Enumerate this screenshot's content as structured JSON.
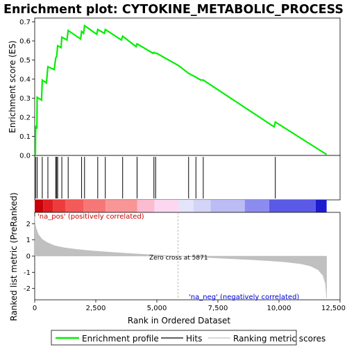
{
  "chart_data": {
    "type": "line",
    "title": "Enrichment plot: CYTOKINE_METABOLIC_PROCESS",
    "top_panel": {
      "ylabel": "Enrichment score (ES)",
      "ylim": [
        0,
        0.72
      ],
      "yticks": [
        "0.0",
        "0.1",
        "0.2",
        "0.3",
        "0.4",
        "0.5",
        "0.6",
        "0.7"
      ],
      "ytick_values": [
        0.0,
        0.1,
        0.2,
        0.3,
        0.4,
        0.5,
        0.6,
        0.7
      ],
      "series": [
        {
          "name": "Enrichment profile",
          "color": "#00ee00",
          "x": [
            0,
            30,
            40,
            90,
            100,
            280,
            310,
            480,
            540,
            800,
            860,
            900,
            940,
            1080,
            1110,
            1320,
            1370,
            1880,
            1920,
            2000,
            2040,
            2540,
            2580,
            2850,
            2890,
            3550,
            3600,
            4150,
            4190,
            4850,
            4880,
            4950,
            5000,
            5900,
            6300,
            6600,
            6800,
            6900,
            9800,
            9850,
            11950
          ],
          "y": [
            0.0,
            0.01,
            0.155,
            0.14,
            0.305,
            0.29,
            0.395,
            0.38,
            0.465,
            0.45,
            0.51,
            0.52,
            0.575,
            0.565,
            0.62,
            0.605,
            0.655,
            0.61,
            0.65,
            0.64,
            0.68,
            0.635,
            0.66,
            0.64,
            0.66,
            0.605,
            0.625,
            0.57,
            0.585,
            0.535,
            0.54,
            0.535,
            0.535,
            0.47,
            0.43,
            0.41,
            0.395,
            0.395,
            0.15,
            0.175,
            0.005
          ]
        }
      ]
    },
    "hits": {
      "name": "Hits",
      "x": [
        40,
        100,
        310,
        540,
        860,
        900,
        940,
        1110,
        1370,
        1920,
        2040,
        2580,
        2890,
        3600,
        4190,
        4880,
        4950,
        6300,
        6600,
        6900,
        9850
      ]
    },
    "bottom_panel": {
      "ylabel": "Ranked list metric (PreRanked)",
      "xlabel": "Rank in Ordered Dataset",
      "xlim": [
        0,
        12500
      ],
      "xticks": [
        "0",
        "2,500",
        "5,000",
        "7,500",
        "10,000",
        "12,500"
      ],
      "xtick_values": [
        0,
        2500,
        5000,
        7500,
        10000,
        12500
      ],
      "ylim": [
        -2.7,
        2.7
      ],
      "yticks": [
        "2",
        "1",
        "0",
        "-1",
        "-2"
      ],
      "ytick_values": [
        2,
        1,
        0,
        -1,
        -2
      ],
      "series": [
        {
          "name": "Ranking metric scores",
          "color": "#c0c0c0",
          "x": [
            0,
            20,
            60,
            150,
            300,
            500,
            800,
            1200,
            1700,
            2300,
            3000,
            3800,
            4600,
            5300,
            5871,
            6500,
            7200,
            8000,
            8800,
            9600,
            10300,
            10900,
            11300,
            11600,
            11800,
            11900,
            11950
          ],
          "y": [
            2.45,
            2.0,
            1.7,
            1.35,
            1.05,
            0.85,
            0.65,
            0.52,
            0.42,
            0.33,
            0.25,
            0.17,
            0.1,
            0.04,
            0.0,
            -0.05,
            -0.1,
            -0.16,
            -0.22,
            -0.29,
            -0.37,
            -0.48,
            -0.62,
            -0.85,
            -1.2,
            -1.7,
            -2.6
          ]
        }
      ],
      "zero_cross": 5871,
      "annotations": {
        "pos_label": "'na_pos' (positively correlated)",
        "neg_label": "'na_neg' (negatively correlated)",
        "zero_label": "Zero cross at 5871"
      }
    },
    "colorbar_segments": [
      {
        "x0": 0,
        "x1": 350,
        "color": "#c8000a"
      },
      {
        "x0": 350,
        "x1": 750,
        "color": "#e01e22"
      },
      {
        "x0": 750,
        "x1": 1250,
        "color": "#ee3c3c"
      },
      {
        "x0": 1250,
        "x1": 2000,
        "color": "#f45a5a"
      },
      {
        "x0": 2000,
        "x1": 2900,
        "color": "#f77777"
      },
      {
        "x0": 2900,
        "x1": 4200,
        "color": "#f99595"
      },
      {
        "x0": 4200,
        "x1": 4900,
        "color": "#fcbcd0"
      },
      {
        "x0": 4900,
        "x1": 5900,
        "color": "#fcd8f0"
      },
      {
        "x0": 5900,
        "x1": 6500,
        "color": "#e4e4fa"
      },
      {
        "x0": 6500,
        "x1": 7200,
        "color": "#d4d4f8"
      },
      {
        "x0": 7200,
        "x1": 8600,
        "color": "#bcbcf4"
      },
      {
        "x0": 8600,
        "x1": 9600,
        "color": "#8c8cf0"
      },
      {
        "x0": 9600,
        "x1": 11500,
        "color": "#5a5ae6"
      },
      {
        "x0": 11500,
        "x1": 11950,
        "color": "#1c1cd0"
      }
    ],
    "legend": {
      "items": [
        {
          "label": "Enrichment profile",
          "color": "#00ee00"
        },
        {
          "label": "Hits",
          "color": "#000000"
        },
        {
          "label": "Ranking metric scores",
          "color": "#c0c0c0"
        }
      ]
    }
  }
}
